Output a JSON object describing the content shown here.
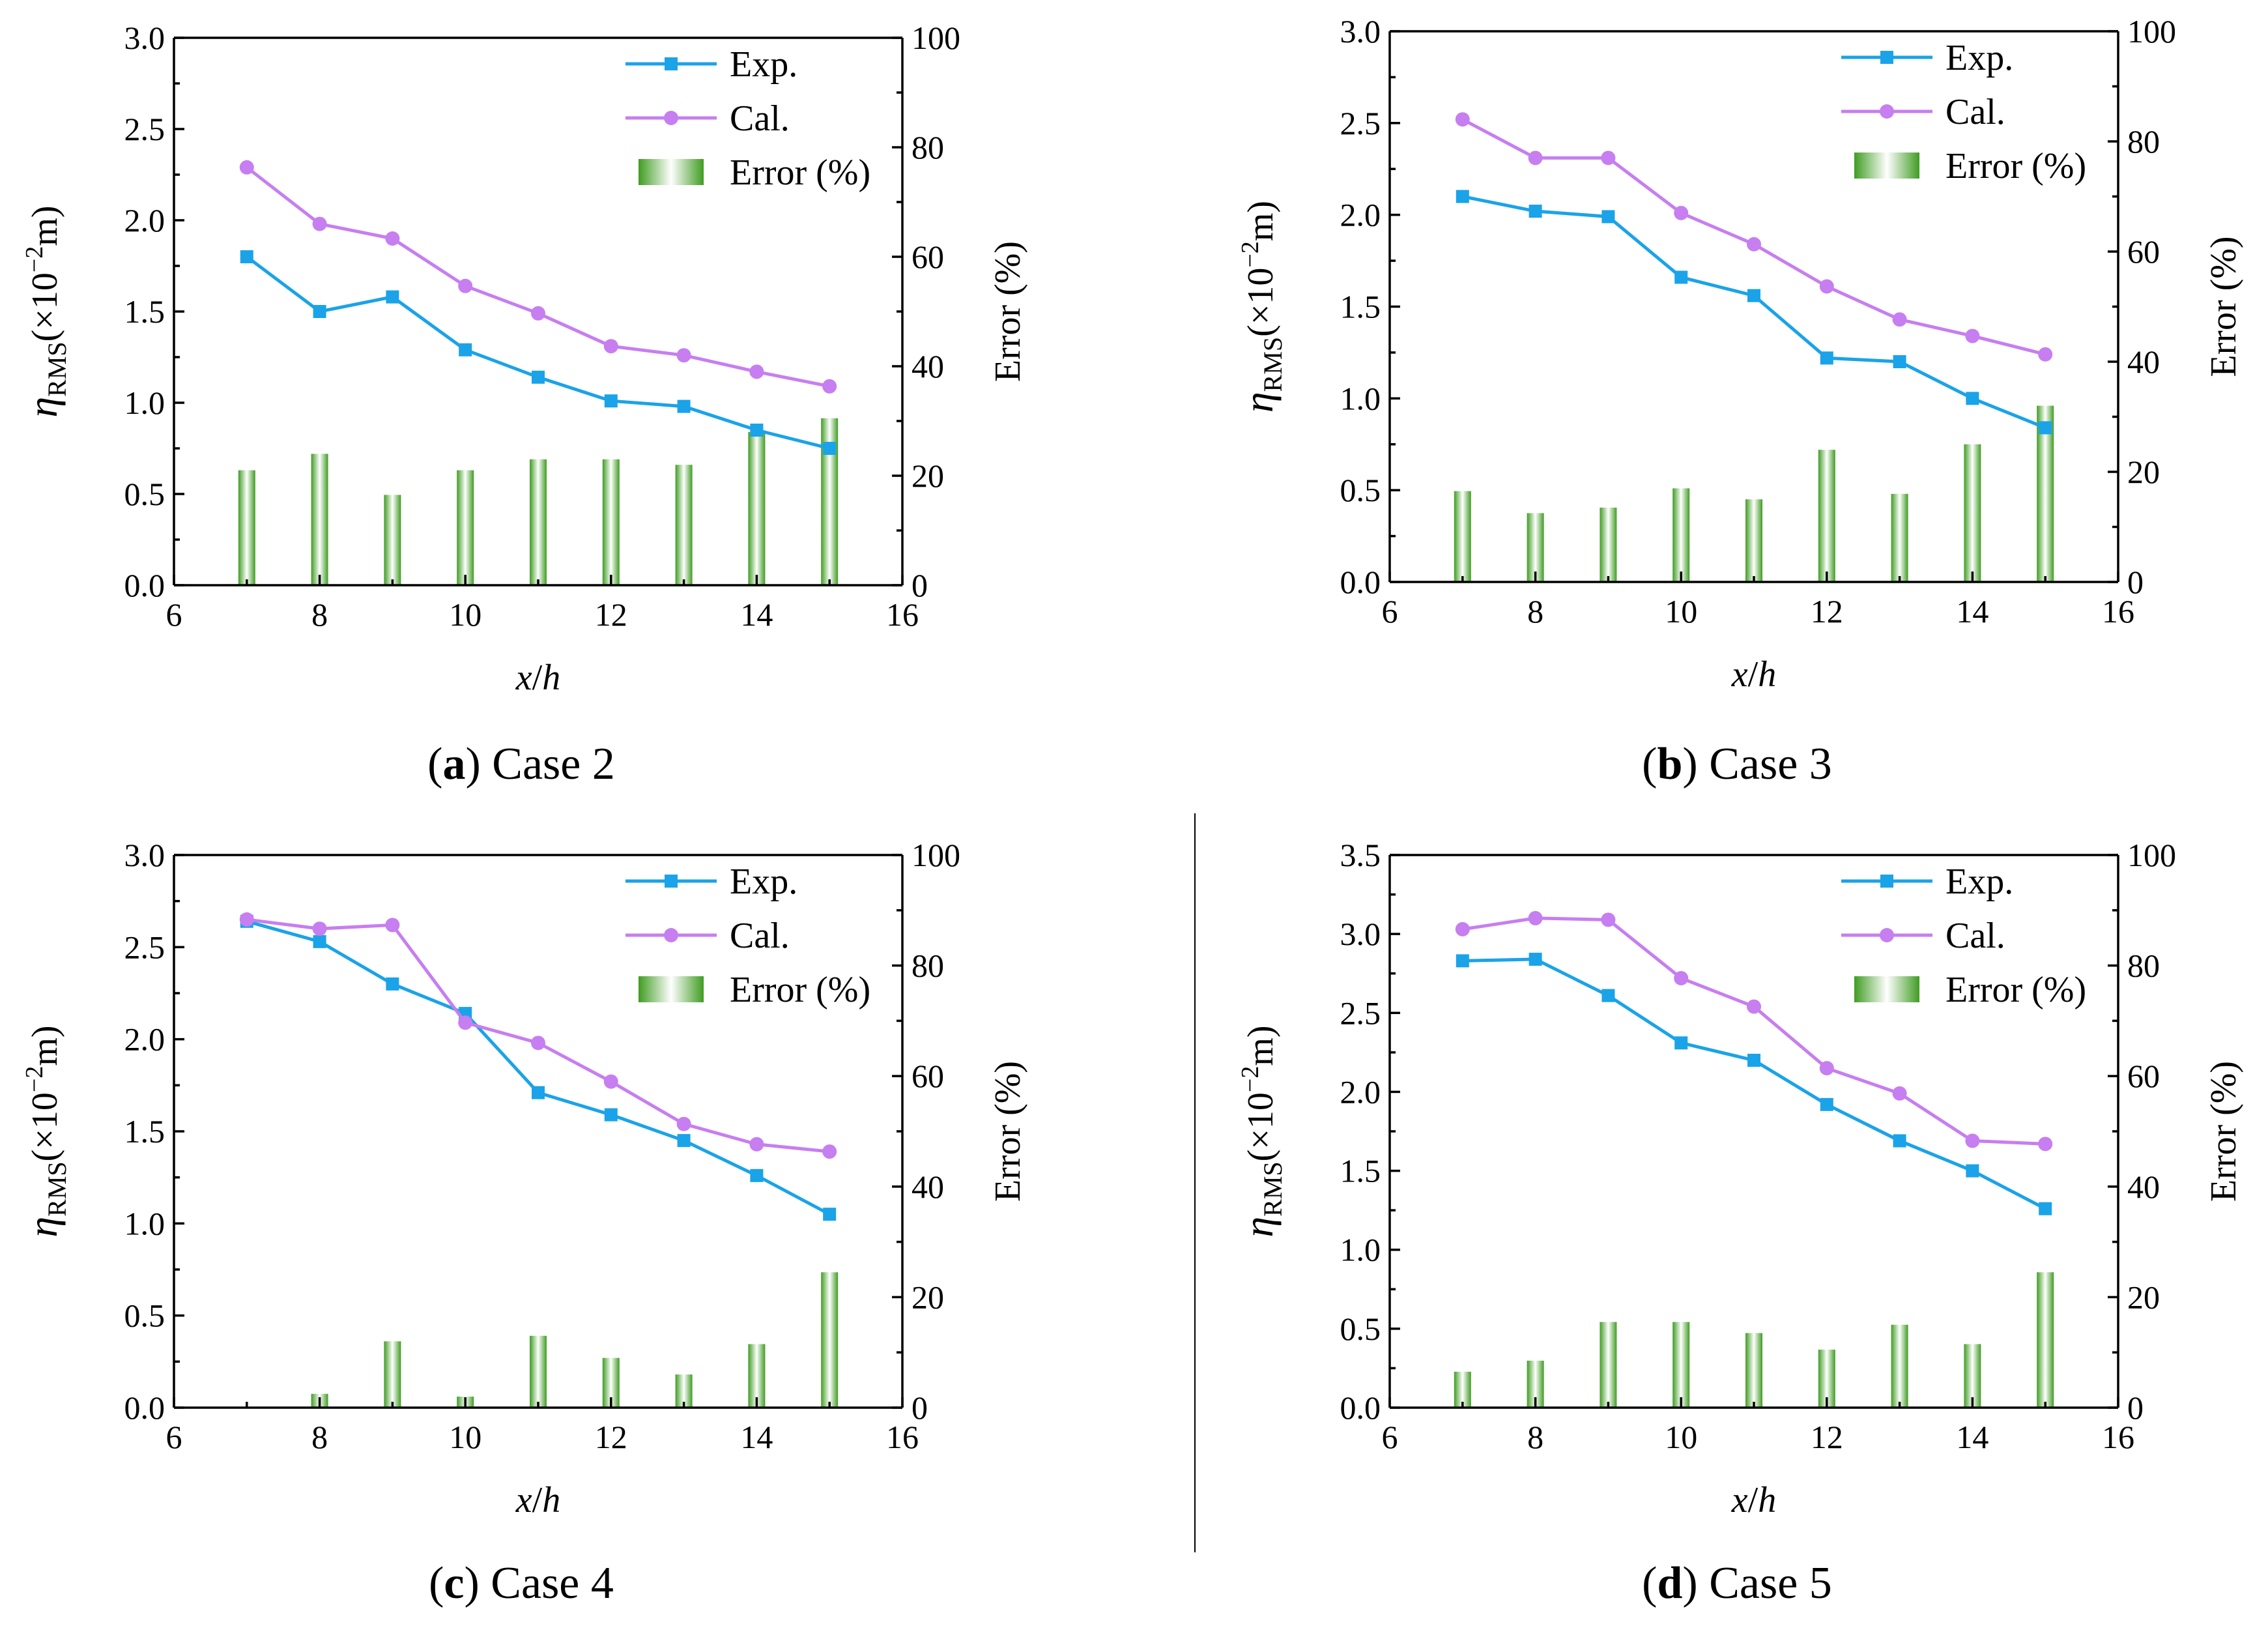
{
  "figure": {
    "colors": {
      "exp": "#1aa3e8",
      "cal": "#c77ef0",
      "bar_dark": "#3f9c22",
      "bar_light": "#ffffff"
    },
    "legend": {
      "exp": "Exp.",
      "cal": "Cal.",
      "error": "Error (%)"
    },
    "xlabel_x": "x",
    "xlabel_slash": "/",
    "xlabel_h": "h",
    "ylabel_eta": "η",
    "ylabel_sub": "RMS",
    "ylabel_open": "(×10",
    "ylabel_sup": "−2",
    "ylabel_close": "m)",
    "y2label": "Error (%)"
  },
  "chart_data": [
    {
      "type": "line",
      "panel": "a",
      "caption_letter": "a",
      "caption_text": " Case 2",
      "x": [
        7,
        8,
        9,
        10,
        11,
        12,
        13,
        14,
        15
      ],
      "series": [
        {
          "name": "Exp.",
          "values": [
            1.8,
            1.5,
            1.58,
            1.29,
            1.14,
            1.01,
            0.98,
            0.85,
            0.75
          ]
        },
        {
          "name": "Cal.",
          "values": [
            2.29,
            1.98,
            1.9,
            1.64,
            1.49,
            1.31,
            1.26,
            1.17,
            1.09
          ]
        }
      ],
      "error": [
        21,
        24,
        16.5,
        21,
        23,
        23,
        22,
        28,
        30.5
      ],
      "xlim": [
        6,
        16
      ],
      "xticks": [
        6,
        8,
        10,
        12,
        14,
        16
      ],
      "ylim": [
        0,
        3.0
      ],
      "yticks": [
        "0.0",
        "0.5",
        "1.0",
        "1.5",
        "2.0",
        "2.5",
        "3.0"
      ],
      "y2lim": [
        0,
        100
      ],
      "y2ticks": [
        0,
        20,
        40,
        60,
        80,
        100
      ],
      "legend": "top-right"
    },
    {
      "type": "line",
      "panel": "b",
      "caption_letter": "b",
      "caption_text": " Case 3",
      "x": [
        7,
        8,
        9,
        10,
        11,
        12,
        13,
        14,
        15
      ],
      "series": [
        {
          "name": "Exp.",
          "values": [
            2.1,
            2.02,
            1.99,
            1.66,
            1.56,
            1.22,
            1.2,
            1.0,
            0.84
          ]
        },
        {
          "name": "Cal.",
          "values": [
            2.52,
            2.31,
            2.31,
            2.01,
            1.84,
            1.61,
            1.43,
            1.34,
            1.24
          ]
        }
      ],
      "error": [
        16.5,
        12.5,
        13.5,
        17,
        15,
        24,
        16,
        25,
        32
      ],
      "xlim": [
        6,
        16
      ],
      "xticks": [
        6,
        8,
        10,
        12,
        14,
        16
      ],
      "ylim": [
        0,
        3.0
      ],
      "yticks": [
        "0.0",
        "0.5",
        "1.0",
        "1.5",
        "2.0",
        "2.5",
        "3.0"
      ],
      "y2lim": [
        0,
        100
      ],
      "y2ticks": [
        0,
        20,
        40,
        60,
        80,
        100
      ],
      "legend": "top-right"
    },
    {
      "type": "line",
      "panel": "c",
      "caption_letter": "c",
      "caption_text": " Case 4",
      "x": [
        7,
        8,
        9,
        10,
        11,
        12,
        13,
        14,
        15
      ],
      "series": [
        {
          "name": "Exp.",
          "values": [
            2.64,
            2.53,
            2.3,
            2.14,
            1.71,
            1.59,
            1.45,
            1.26,
            1.05
          ]
        },
        {
          "name": "Cal.",
          "values": [
            2.65,
            2.6,
            2.62,
            2.09,
            1.98,
            1.77,
            1.54,
            1.43,
            1.39
          ]
        }
      ],
      "error": [
        0,
        2.5,
        12,
        2,
        13,
        9,
        6,
        11.5,
        24.5
      ],
      "xlim": [
        6,
        16
      ],
      "xticks": [
        6,
        8,
        10,
        12,
        14,
        16
      ],
      "ylim": [
        0,
        3.0
      ],
      "yticks": [
        "0.0",
        "0.5",
        "1.0",
        "1.5",
        "2.0",
        "2.5",
        "3.0"
      ],
      "y2lim": [
        0,
        100
      ],
      "y2ticks": [
        0,
        20,
        40,
        60,
        80,
        100
      ],
      "legend": "top-right"
    },
    {
      "type": "line",
      "panel": "d",
      "caption_letter": "d",
      "caption_text": " Case 5",
      "x": [
        7,
        8,
        9,
        10,
        11,
        12,
        13,
        14,
        15
      ],
      "series": [
        {
          "name": "Exp.",
          "values": [
            2.83,
            2.84,
            2.61,
            2.31,
            2.2,
            1.92,
            1.69,
            1.5,
            1.26
          ]
        },
        {
          "name": "Cal.",
          "values": [
            3.03,
            3.1,
            3.09,
            2.72,
            2.54,
            2.15,
            1.99,
            1.69,
            1.67
          ]
        }
      ],
      "error": [
        6.5,
        8.5,
        15.5,
        15.5,
        13.5,
        10.5,
        15,
        11.5,
        24.5
      ],
      "xlim": [
        6,
        16
      ],
      "xticks": [
        6,
        8,
        10,
        12,
        14,
        16
      ],
      "ylim": [
        0,
        3.5
      ],
      "yticks": [
        "0.0",
        "0.5",
        "1.0",
        "1.5",
        "2.0",
        "2.5",
        "3.0",
        "3.5"
      ],
      "y2lim": [
        0,
        100
      ],
      "y2ticks": [
        0,
        20,
        40,
        60,
        80,
        100
      ],
      "legend": "top-right"
    }
  ]
}
